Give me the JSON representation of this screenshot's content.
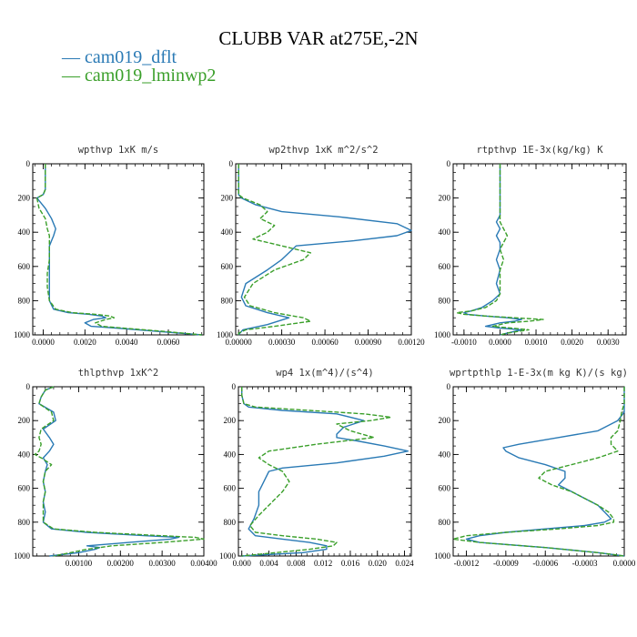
{
  "figure_title": "CLUBB VAR at275E,-2N",
  "legend": [
    {
      "label": "— cam019_dflt",
      "color": "#2a7ab5"
    },
    {
      "label": "— cam019_lminwp2",
      "color": "#3a9f2a"
    }
  ],
  "chart_data": [
    {
      "type": "line",
      "title": "wpthvp  1xK m/s",
      "xlim": [
        -0.0005,
        0.0077
      ],
      "ylim": [
        1000,
        0
      ],
      "xticks": [
        0,
        0.002,
        0.004,
        0.006
      ],
      "xtick_labels": [
        "0.0000",
        "0.0020",
        "0.0040",
        "0.0060"
      ],
      "yticks": [
        0,
        200,
        400,
        600,
        800,
        1000
      ],
      "ytick_labels": [
        "0",
        "200",
        "400",
        "600",
        "800",
        "1000"
      ],
      "series": [
        {
          "name": "cam019_dflt",
          "p": [
            0,
            50,
            100,
            150,
            180,
            200,
            260,
            320,
            380,
            420,
            480,
            560,
            640,
            720,
            800,
            850,
            870,
            880,
            890,
            900,
            910,
            930,
            950,
            960,
            980,
            1000
          ],
          "x": [
            0.0001,
            0.0001,
            0.0001,
            0.0001,
            0.0,
            -0.0003,
            0.0001,
            0.0004,
            0.0006,
            0.0005,
            0.0003,
            0.0003,
            0.0003,
            0.0003,
            0.0003,
            0.0005,
            0.0012,
            0.0022,
            0.0028,
            0.003,
            0.0024,
            0.002,
            0.0023,
            0.0035,
            0.0055,
            0.0076
          ]
        },
        {
          "name": "cam019_lminwp2",
          "p": [
            0,
            50,
            100,
            150,
            180,
            200,
            260,
            320,
            380,
            420,
            480,
            560,
            640,
            720,
            800,
            850,
            870,
            880,
            890,
            900,
            910,
            930,
            950,
            960,
            980,
            1000
          ],
          "x": [
            0.0001,
            0.0001,
            0.0001,
            0.0001,
            0.0,
            -0.0003,
            -0.0002,
            0.0001,
            0.0002,
            0.0003,
            0.0003,
            0.0003,
            0.0002,
            0.0002,
            0.0003,
            0.0006,
            0.0014,
            0.0025,
            0.0032,
            0.0034,
            0.003,
            0.0025,
            0.0028,
            0.0038,
            0.0058,
            0.0076
          ]
        }
      ]
    },
    {
      "type": "line",
      "title": "wp2thvp  1xK m^2/s^2",
      "xlim": [
        -2e-05,
        0.0012
      ],
      "ylim": [
        1000,
        0
      ],
      "xticks": [
        0,
        0.0003,
        0.0006,
        0.0009,
        0.0012
      ],
      "xtick_labels": [
        "0.00000",
        "0.00030",
        "0.00060",
        "0.00090",
        "0.00120"
      ],
      "yticks": [
        0,
        200,
        400,
        600,
        800,
        1000
      ],
      "ytick_labels": [
        "0",
        "200",
        "400",
        "600",
        "800",
        "1000"
      ],
      "series": [
        {
          "name": "cam019_dflt",
          "p": [
            0,
            100,
            180,
            200,
            240,
            280,
            310,
            350,
            390,
            420,
            450,
            480,
            520,
            560,
            620,
            700,
            780,
            830,
            870,
            900,
            940,
            970,
            990,
            1000
          ],
          "x": [
            0.0,
            0.0,
            0.0,
            2e-05,
            0.00012,
            0.0003,
            0.0007,
            0.0011,
            0.0012,
            0.0011,
            0.0008,
            0.0004,
            0.00035,
            0.0003,
            0.0002,
            5e-05,
            2e-05,
            5e-05,
            0.0002,
            0.00035,
            0.0002,
            3e-05,
            1e-05,
            0.0
          ]
        },
        {
          "name": "cam019_lminwp2",
          "p": [
            0,
            100,
            180,
            200,
            240,
            280,
            320,
            360,
            400,
            440,
            480,
            520,
            560,
            620,
            700,
            780,
            830,
            870,
            900,
            920,
            950,
            970,
            990,
            1000
          ],
          "x": [
            0.0,
            0.0,
            0.0,
            3e-05,
            0.00015,
            0.0002,
            0.00015,
            0.00025,
            0.0002,
            0.0001,
            0.0003,
            0.0005,
            0.00045,
            0.00025,
            0.0001,
            4e-05,
            8e-05,
            0.00025,
            0.00045,
            0.0005,
            0.00025,
            5e-05,
            0.0,
            0.0
          ]
        }
      ]
    },
    {
      "type": "line",
      "title": "rtpthvp  1E-3x(kg/kg) K",
      "xlim": [
        -0.0013,
        0.0035
      ],
      "ylim": [
        1000,
        0
      ],
      "xticks": [
        -0.001,
        0,
        0.001,
        0.002,
        0.003
      ],
      "xtick_labels": [
        "-0.0010",
        "0.0000",
        "0.0010",
        "0.0020",
        "0.0030"
      ],
      "yticks": [
        0,
        200,
        400,
        600,
        800,
        1000
      ],
      "ytick_labels": [
        "0",
        "200",
        "400",
        "600",
        "800",
        "1000"
      ],
      "series": [
        {
          "name": "cam019_dflt",
          "p": [
            0,
            100,
            200,
            300,
            340,
            380,
            420,
            460,
            500,
            560,
            620,
            700,
            760,
            800,
            840,
            860,
            870,
            880,
            890,
            900,
            910,
            920,
            930,
            950,
            960,
            970,
            980,
            990,
            1000
          ],
          "x": [
            0.0,
            0.0,
            0.0,
            0.0,
            -0.0001,
            0.0,
            -0.0001,
            0.0,
            0.0,
            -0.0001,
            0.0,
            -0.0001,
            0.0,
            -0.0002,
            -0.0005,
            -0.0008,
            -0.001,
            -0.0009,
            -0.0004,
            0.0002,
            0.0006,
            0.0004,
            0.0,
            -0.0004,
            0.0,
            0.0006,
            0.0004,
            0.0002,
            0.0
          ]
        },
        {
          "name": "cam019_lminwp2",
          "p": [
            0,
            100,
            200,
            300,
            340,
            380,
            420,
            460,
            500,
            560,
            620,
            700,
            760,
            800,
            840,
            860,
            870,
            880,
            890,
            900,
            910,
            920,
            930,
            950,
            960,
            970,
            980,
            990,
            1000
          ],
          "x": [
            0.0,
            0.0,
            0.0,
            0.0,
            0.0,
            0.0001,
            0.0002,
            0.0001,
            0.0,
            0.0001,
            0.0,
            0.0,
            0.0,
            -0.0001,
            -0.0004,
            -0.0008,
            -0.0012,
            -0.001,
            -0.0004,
            0.0004,
            0.0012,
            0.0008,
            0.0002,
            -0.0002,
            0.0003,
            0.0008,
            0.0005,
            0.0002,
            0.0
          ]
        }
      ]
    },
    {
      "type": "line",
      "title": "thlpthvp  1xK^2",
      "xlim": [
        -0.0001,
        0.004
      ],
      "ylim": [
        1000,
        0
      ],
      "xticks": [
        0.001,
        0.002,
        0.003,
        0.004
      ],
      "xtick_labels": [
        "0.00100",
        "0.00200",
        "0.00300",
        "0.00400"
      ],
      "yticks": [
        0,
        200,
        400,
        600,
        800,
        1000
      ],
      "ytick_labels": [
        "0",
        "200",
        "400",
        "600",
        "800",
        "1000"
      ],
      "series": [
        {
          "name": "cam019_dflt",
          "p": [
            0,
            20,
            60,
            100,
            150,
            200,
            250,
            300,
            340,
            380,
            420,
            460,
            500,
            560,
            620,
            680,
            740,
            800,
            840,
            860,
            880,
            890,
            900,
            920,
            940,
            950,
            960,
            980,
            1000
          ],
          "x": [
            0.0004,
            0.0002,
            0.0001,
            5e-05,
            0.0004,
            0.00045,
            0.00015,
            0.0003,
            0.0004,
            0.0003,
            0.00015,
            0.00025,
            0.0002,
            0.00015,
            0.0002,
            0.00015,
            0.0002,
            0.00015,
            0.00035,
            0.0012,
            0.0026,
            0.0034,
            0.0032,
            0.0022,
            0.0012,
            0.0015,
            0.0014,
            0.001,
            0.0003
          ]
        },
        {
          "name": "cam019_lminwp2",
          "p": [
            0,
            20,
            60,
            100,
            150,
            200,
            250,
            300,
            340,
            380,
            400,
            420,
            460,
            500,
            560,
            620,
            680,
            740,
            800,
            840,
            860,
            880,
            890,
            900,
            920,
            940,
            960,
            980,
            1000
          ],
          "x": [
            0.0004,
            0.0002,
            0.0001,
            5e-05,
            0.00035,
            0.0004,
            0.0001,
            5e-05,
            0.0001,
            5e-05,
            -5e-05,
            0.0001,
            0.00035,
            0.0002,
            0.00015,
            0.0002,
            0.00015,
            0.00015,
            0.00015,
            0.0004,
            0.0014,
            0.003,
            0.0038,
            0.004,
            0.003,
            0.0018,
            0.0012,
            0.0008,
            0.0004
          ]
        }
      ]
    },
    {
      "type": "line",
      "title": "wp4  1x(m^4)/(s^4)",
      "xlim": [
        -0.0005,
        0.025
      ],
      "ylim": [
        1000,
        0
      ],
      "xticks": [
        0,
        0.004,
        0.008,
        0.012,
        0.016,
        0.02,
        0.024
      ],
      "xtick_labels": [
        "0.000",
        "0.004",
        "0.008",
        "0.012",
        "0.016",
        "0.020",
        "0.024"
      ],
      "yticks": [
        0,
        200,
        400,
        600,
        800,
        1000
      ],
      "ytick_labels": [
        "0",
        "200",
        "400",
        "600",
        "800",
        "1000"
      ],
      "series": [
        {
          "name": "cam019_dflt",
          "p": [
            0,
            50,
            100,
            120,
            140,
            160,
            200,
            240,
            280,
            300,
            320,
            350,
            380,
            410,
            450,
            480,
            500,
            540,
            580,
            620,
            700,
            780,
            840,
            880,
            900,
            920,
            940,
            960,
            980,
            1000
          ],
          "x": [
            0.0,
            0.0,
            0.0003,
            0.001,
            0.006,
            0.014,
            0.018,
            0.015,
            0.014,
            0.014,
            0.017,
            0.021,
            0.0245,
            0.021,
            0.014,
            0.006,
            0.004,
            0.0035,
            0.003,
            0.0025,
            0.0025,
            0.0018,
            0.001,
            0.002,
            0.006,
            0.01,
            0.0125,
            0.0125,
            0.009,
            0.0
          ]
        },
        {
          "name": "cam019_lminwp2",
          "p": [
            0,
            50,
            100,
            120,
            140,
            160,
            180,
            200,
            220,
            260,
            300,
            340,
            380,
            420,
            460,
            500,
            560,
            620,
            700,
            760,
            820,
            860,
            880,
            900,
            920,
            940,
            960,
            980,
            1000
          ],
          "x": [
            0.0,
            0.0,
            0.0003,
            0.002,
            0.01,
            0.018,
            0.022,
            0.019,
            0.014,
            0.016,
            0.0195,
            0.011,
            0.004,
            0.0025,
            0.004,
            0.006,
            0.007,
            0.006,
            0.004,
            0.0025,
            0.0012,
            0.002,
            0.006,
            0.011,
            0.014,
            0.0135,
            0.01,
            0.005,
            0.0
          ]
        }
      ]
    },
    {
      "type": "line",
      "title": "wprtpthlp  1-E-3x(m kg K)/(s kg)",
      "xlim": [
        -0.0013,
        0.0
      ],
      "ylim": [
        1000,
        0
      ],
      "xticks": [
        -0.0012,
        -0.0009,
        -0.0006,
        -0.0003,
        0.0
      ],
      "xtick_labels": [
        "-0.0012",
        "-0.0009",
        "-0.0006",
        "-0.0003",
        "0.0000"
      ],
      "yticks": [
        0,
        200,
        400,
        600,
        800,
        1000
      ],
      "ytick_labels": [
        "0",
        "200",
        "400",
        "600",
        "800",
        "1000"
      ],
      "series": [
        {
          "name": "cam019_dflt",
          "p": [
            0,
            100,
            150,
            200,
            260,
            300,
            340,
            360,
            380,
            420,
            460,
            500,
            540,
            580,
            620,
            660,
            700,
            740,
            780,
            800,
            820,
            840,
            860,
            880,
            900,
            920,
            950,
            980,
            1000
          ],
          "x": [
            0.0,
            0.0,
            0.0,
            -5e-05,
            -0.0002,
            -0.0005,
            -0.0008,
            -0.00092,
            -0.0009,
            -0.0008,
            -0.0006,
            -0.00045,
            -0.00045,
            -0.0005,
            -0.0004,
            -0.0003,
            -0.0002,
            -0.00015,
            -0.0001,
            -0.00015,
            -0.0003,
            -0.0006,
            -0.0009,
            -0.0011,
            -0.0012,
            -0.0011,
            -0.0006,
            -0.0002,
            0.0
          ]
        },
        {
          "name": "cam019_lminwp2",
          "p": [
            0,
            100,
            150,
            200,
            260,
            300,
            340,
            380,
            420,
            460,
            500,
            540,
            580,
            620,
            660,
            700,
            740,
            780,
            800,
            820,
            840,
            860,
            880,
            900,
            920,
            950,
            980,
            1000
          ],
          "x": [
            0.0,
            0.0,
            -2e-05,
            -3e-05,
            -5e-05,
            -0.0001,
            -0.0001,
            -5e-05,
            -0.0002,
            -0.0004,
            -0.0006,
            -0.00065,
            -0.00055,
            -0.0004,
            -0.0003,
            -0.0002,
            -0.00012,
            -8e-05,
            -8e-05,
            -0.0002,
            -0.0005,
            -0.0009,
            -0.0012,
            -0.0013,
            -0.0011,
            -0.0006,
            -0.0002,
            0.0
          ]
        }
      ]
    }
  ]
}
